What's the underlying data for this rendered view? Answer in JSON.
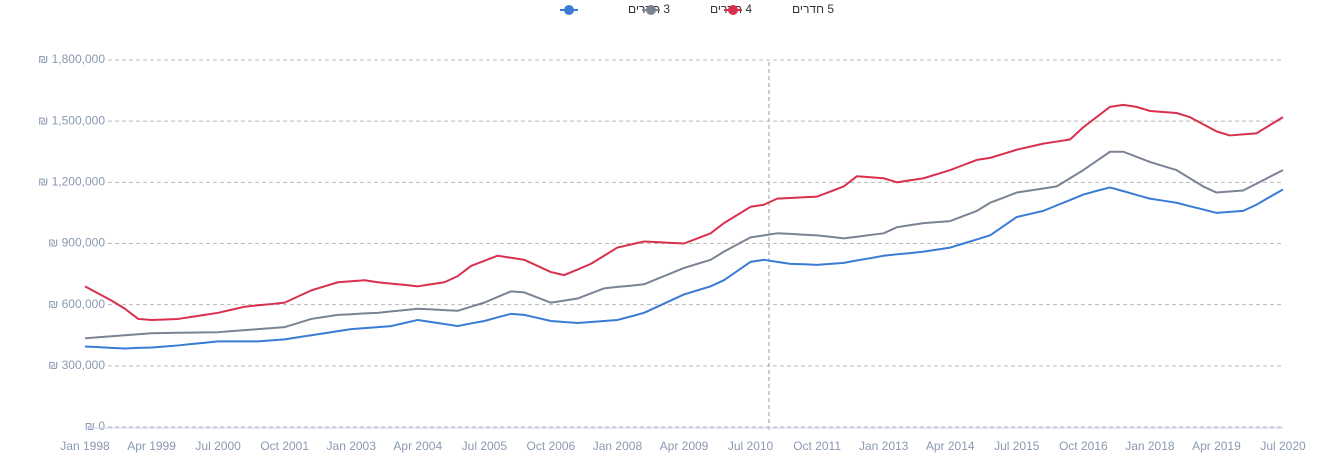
{
  "chart_data": {
    "type": "line",
    "categories": [
      "Jan 1998",
      null,
      null,
      null,
      null,
      "Apr 1999",
      null,
      null,
      null,
      null,
      "Jul 2000",
      null,
      null,
      null,
      null,
      "Oct 2001",
      null,
      null,
      null,
      null,
      "Jan 2003",
      null,
      null,
      null,
      null,
      "Apr 2004",
      null,
      null,
      null,
      null,
      "Jul 2005",
      null,
      null,
      null,
      null,
      "Oct 2006",
      null,
      null,
      null,
      null,
      "Jan 2008",
      null,
      null,
      null,
      null,
      "Apr 2009",
      null,
      null,
      null,
      null,
      "Jul 2010",
      null,
      null,
      null,
      null,
      "Oct 2011",
      null,
      null,
      null,
      null,
      "Jan 2013",
      null,
      null,
      null,
      null,
      "Apr 2014",
      null,
      null,
      null,
      null,
      "Jul 2015",
      null,
      null,
      null,
      null,
      "Oct 2016",
      null,
      null,
      null,
      null,
      "Jan 2018",
      null,
      null,
      null,
      null,
      "Apr 2019",
      null,
      null,
      null,
      null,
      "Jul 2020"
    ],
    "series": [
      {
        "name": "3 חדרים",
        "color": "#3a7bd5",
        "values": [
          395000,
          392000,
          388000,
          385000,
          388000,
          390000,
          395000,
          400000,
          407000,
          413000,
          420000,
          420000,
          420000,
          420000,
          425000,
          430000,
          440000,
          450000,
          460000,
          470000,
          480000,
          485000,
          490000,
          495000,
          510000,
          525000,
          515000,
          505000,
          495000,
          508000,
          520000,
          538000,
          555000,
          550000,
          535000,
          520000,
          515000,
          510000,
          515000,
          520000,
          525000,
          542000,
          560000,
          590000,
          620000,
          650000,
          670000,
          690000,
          720000,
          765000,
          810000,
          820000,
          810000,
          800000,
          798000,
          795000,
          800000,
          805000,
          817000,
          828000,
          840000,
          847000,
          853000,
          860000,
          870000,
          880000,
          900000,
          920000,
          940000,
          985000,
          1030000,
          1045000,
          1060000,
          1087000,
          1113000,
          1140000,
          1158000,
          1175000,
          1157000,
          1138000,
          1120000,
          1110000,
          1100000,
          1083000,
          1067000,
          1050000,
          1055000,
          1060000,
          1090000,
          1128000,
          1165000
        ]
      },
      {
        "name": "4 חדרים",
        "color": "#7a8394",
        "values": [
          435000,
          440000,
          445000,
          450000,
          455000,
          460000,
          461000,
          462000,
          463000,
          464000,
          465000,
          470000,
          475000,
          480000,
          485000,
          490000,
          510000,
          530000,
          540000,
          550000,
          553000,
          557000,
          560000,
          567000,
          573000,
          580000,
          577000,
          573000,
          570000,
          590000,
          610000,
          638000,
          665000,
          660000,
          635000,
          610000,
          620000,
          630000,
          655000,
          680000,
          687000,
          693000,
          700000,
          727000,
          753000,
          780000,
          800000,
          820000,
          860000,
          895000,
          930000,
          940000,
          950000,
          947000,
          943000,
          940000,
          933000,
          925000,
          933000,
          942000,
          950000,
          980000,
          990000,
          1000000,
          1005000,
          1010000,
          1035000,
          1060000,
          1100000,
          1125000,
          1150000,
          1160000,
          1170000,
          1180000,
          1220000,
          1260000,
          1305000,
          1350000,
          1350000,
          1325000,
          1300000,
          1280000,
          1260000,
          1220000,
          1180000,
          1150000,
          1155000,
          1160000,
          1193000,
          1227000,
          1260000
        ]
      },
      {
        "name": "5 חדרים",
        "color": "#d9304f",
        "values": [
          690000,
          655000,
          620000,
          580000,
          530000,
          525000,
          527000,
          530000,
          540000,
          550000,
          560000,
          575000,
          590000,
          597000,
          603000,
          610000,
          640000,
          670000,
          690000,
          710000,
          715000,
          720000,
          710000,
          703000,
          697000,
          690000,
          700000,
          710000,
          740000,
          790000,
          815000,
          840000,
          830000,
          820000,
          790000,
          760000,
          745000,
          772000,
          800000,
          840000,
          880000,
          895000,
          910000,
          907000,
          903000,
          900000,
          925000,
          950000,
          1000000,
          1040000,
          1080000,
          1090000,
          1120000,
          1123000,
          1127000,
          1130000,
          1155000,
          1180000,
          1230000,
          1225000,
          1220000,
          1200000,
          1210000,
          1220000,
          1240000,
          1260000,
          1285000,
          1310000,
          1320000,
          1340000,
          1360000,
          1375000,
          1390000,
          1400000,
          1410000,
          1470000,
          1520000,
          1570000,
          1580000,
          1570000,
          1550000,
          1545000,
          1540000,
          1520000,
          1485000,
          1450000,
          1430000,
          1435000,
          1440000,
          1480000,
          1520000
        ]
      }
    ],
    "ylim": [
      0,
      1800000
    ],
    "yticks": [
      {
        "value": 0,
        "label": "₪ 0"
      },
      {
        "value": 300000,
        "label": "₪ 300,000"
      },
      {
        "value": 600000,
        "label": "₪ 600,000"
      },
      {
        "value": 900000,
        "label": "₪ 900,000"
      },
      {
        "value": 1200000,
        "label": "₪ 1,200,000"
      },
      {
        "value": 1500000,
        "label": "₪ 1,500,000"
      },
      {
        "value": 1800000,
        "label": "₪ 1,800,000"
      }
    ],
    "grid": true,
    "legend": "top"
  }
}
